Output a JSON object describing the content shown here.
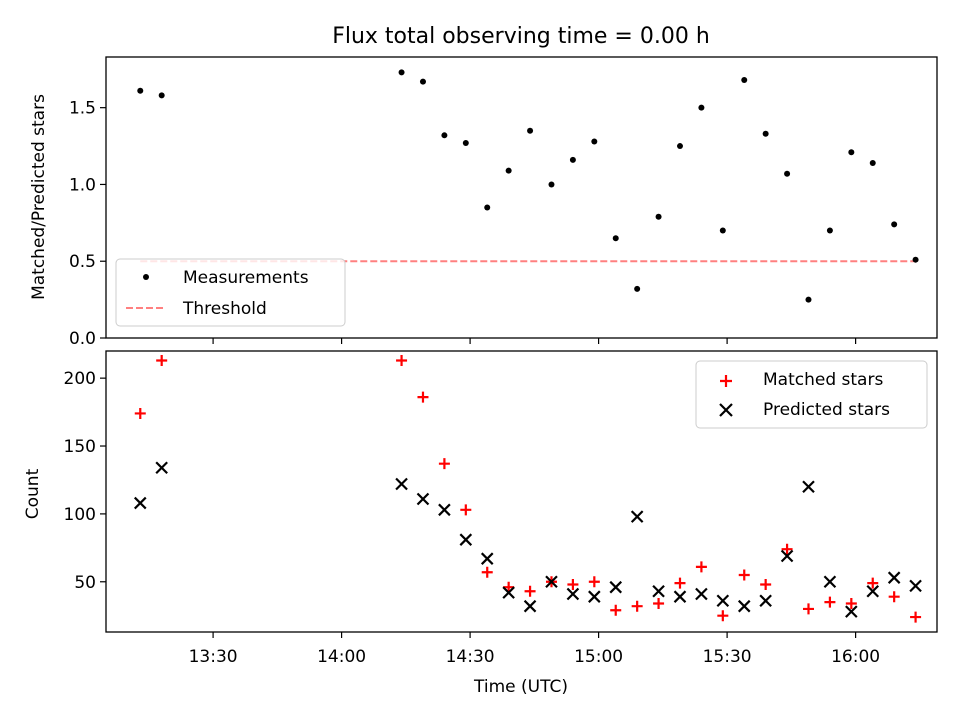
{
  "chart_data": [
    {
      "type": "scatter",
      "title": "Flux total observing time = 0.00 h",
      "xlabel": "",
      "ylabel": "Matched/Predicted stars",
      "ylim": [
        0,
        1.83
      ],
      "yticks": [
        "0.0",
        "0.5",
        "1.0",
        "1.5"
      ],
      "ytick_values": [
        0,
        0.5,
        1.0,
        1.5
      ],
      "grid": false,
      "legend_position": "lower-left",
      "series": [
        {
          "name": "Measurements",
          "marker": "dot",
          "color": "#000000",
          "x": [
            "13:13",
            "13:18",
            "14:14",
            "14:19",
            "14:24",
            "14:29",
            "14:34",
            "14:39",
            "14:44",
            "14:49",
            "14:54",
            "14:59",
            "15:04",
            "15:09",
            "15:14",
            "15:19",
            "15:24",
            "15:29",
            "15:34",
            "15:39",
            "15:44",
            "15:49",
            "15:54",
            "15:59",
            "16:04",
            "16:09",
            "16:14"
          ],
          "y": [
            1.61,
            1.58,
            1.73,
            1.67,
            1.32,
            1.27,
            0.85,
            1.09,
            1.35,
            1.0,
            1.16,
            1.28,
            0.65,
            0.32,
            0.79,
            1.25,
            1.5,
            0.7,
            1.68,
            1.33,
            1.07,
            0.25,
            0.7,
            1.21,
            1.14,
            0.74,
            0.51
          ]
        },
        {
          "name": "Threshold",
          "style": "dashed",
          "color": "#ff8080",
          "x": [
            "13:13",
            "16:14"
          ],
          "y": [
            0.5,
            0.5
          ]
        }
      ]
    },
    {
      "type": "scatter",
      "title": "",
      "xlabel": "Time (UTC)",
      "ylabel": "Count",
      "ylim": [
        13,
        220
      ],
      "yticks": [
        "50",
        "100",
        "150",
        "200"
      ],
      "ytick_values": [
        50,
        100,
        150,
        200
      ],
      "xticks": [
        "13:30",
        "14:00",
        "14:30",
        "15:00",
        "15:30",
        "16:00"
      ],
      "grid": false,
      "legend_position": "upper-right",
      "series": [
        {
          "name": "Matched stars",
          "marker": "plus",
          "color": "#ff0000",
          "x": [
            "13:13",
            "13:18",
            "14:14",
            "14:19",
            "14:24",
            "14:29",
            "14:34",
            "14:39",
            "14:44",
            "14:49",
            "14:54",
            "14:59",
            "15:04",
            "15:09",
            "15:14",
            "15:19",
            "15:24",
            "15:29",
            "15:34",
            "15:39",
            "15:44",
            "15:49",
            "15:54",
            "15:59",
            "16:04",
            "16:09",
            "16:14"
          ],
          "y": [
            174,
            213,
            213,
            186,
            137,
            103,
            57,
            46,
            43,
            50,
            48,
            50,
            29,
            32,
            34,
            49,
            61,
            25,
            55,
            48,
            74,
            30,
            35,
            34,
            49,
            39,
            24
          ]
        },
        {
          "name": "Predicted stars",
          "marker": "x",
          "color": "#000000",
          "x": [
            "13:13",
            "13:18",
            "14:14",
            "14:19",
            "14:24",
            "14:29",
            "14:34",
            "14:39",
            "14:44",
            "14:49",
            "14:54",
            "14:59",
            "15:04",
            "15:09",
            "15:14",
            "15:19",
            "15:24",
            "15:29",
            "15:34",
            "15:39",
            "15:44",
            "15:49",
            "15:54",
            "15:59",
            "16:04",
            "16:09",
            "16:14"
          ],
          "y": [
            108,
            134,
            122,
            111,
            103,
            81,
            67,
            42,
            32,
            50,
            41,
            39,
            46,
            98,
            43,
            39,
            41,
            36,
            32,
            36,
            69,
            120,
            50,
            28,
            43,
            53,
            47
          ]
        }
      ]
    }
  ]
}
